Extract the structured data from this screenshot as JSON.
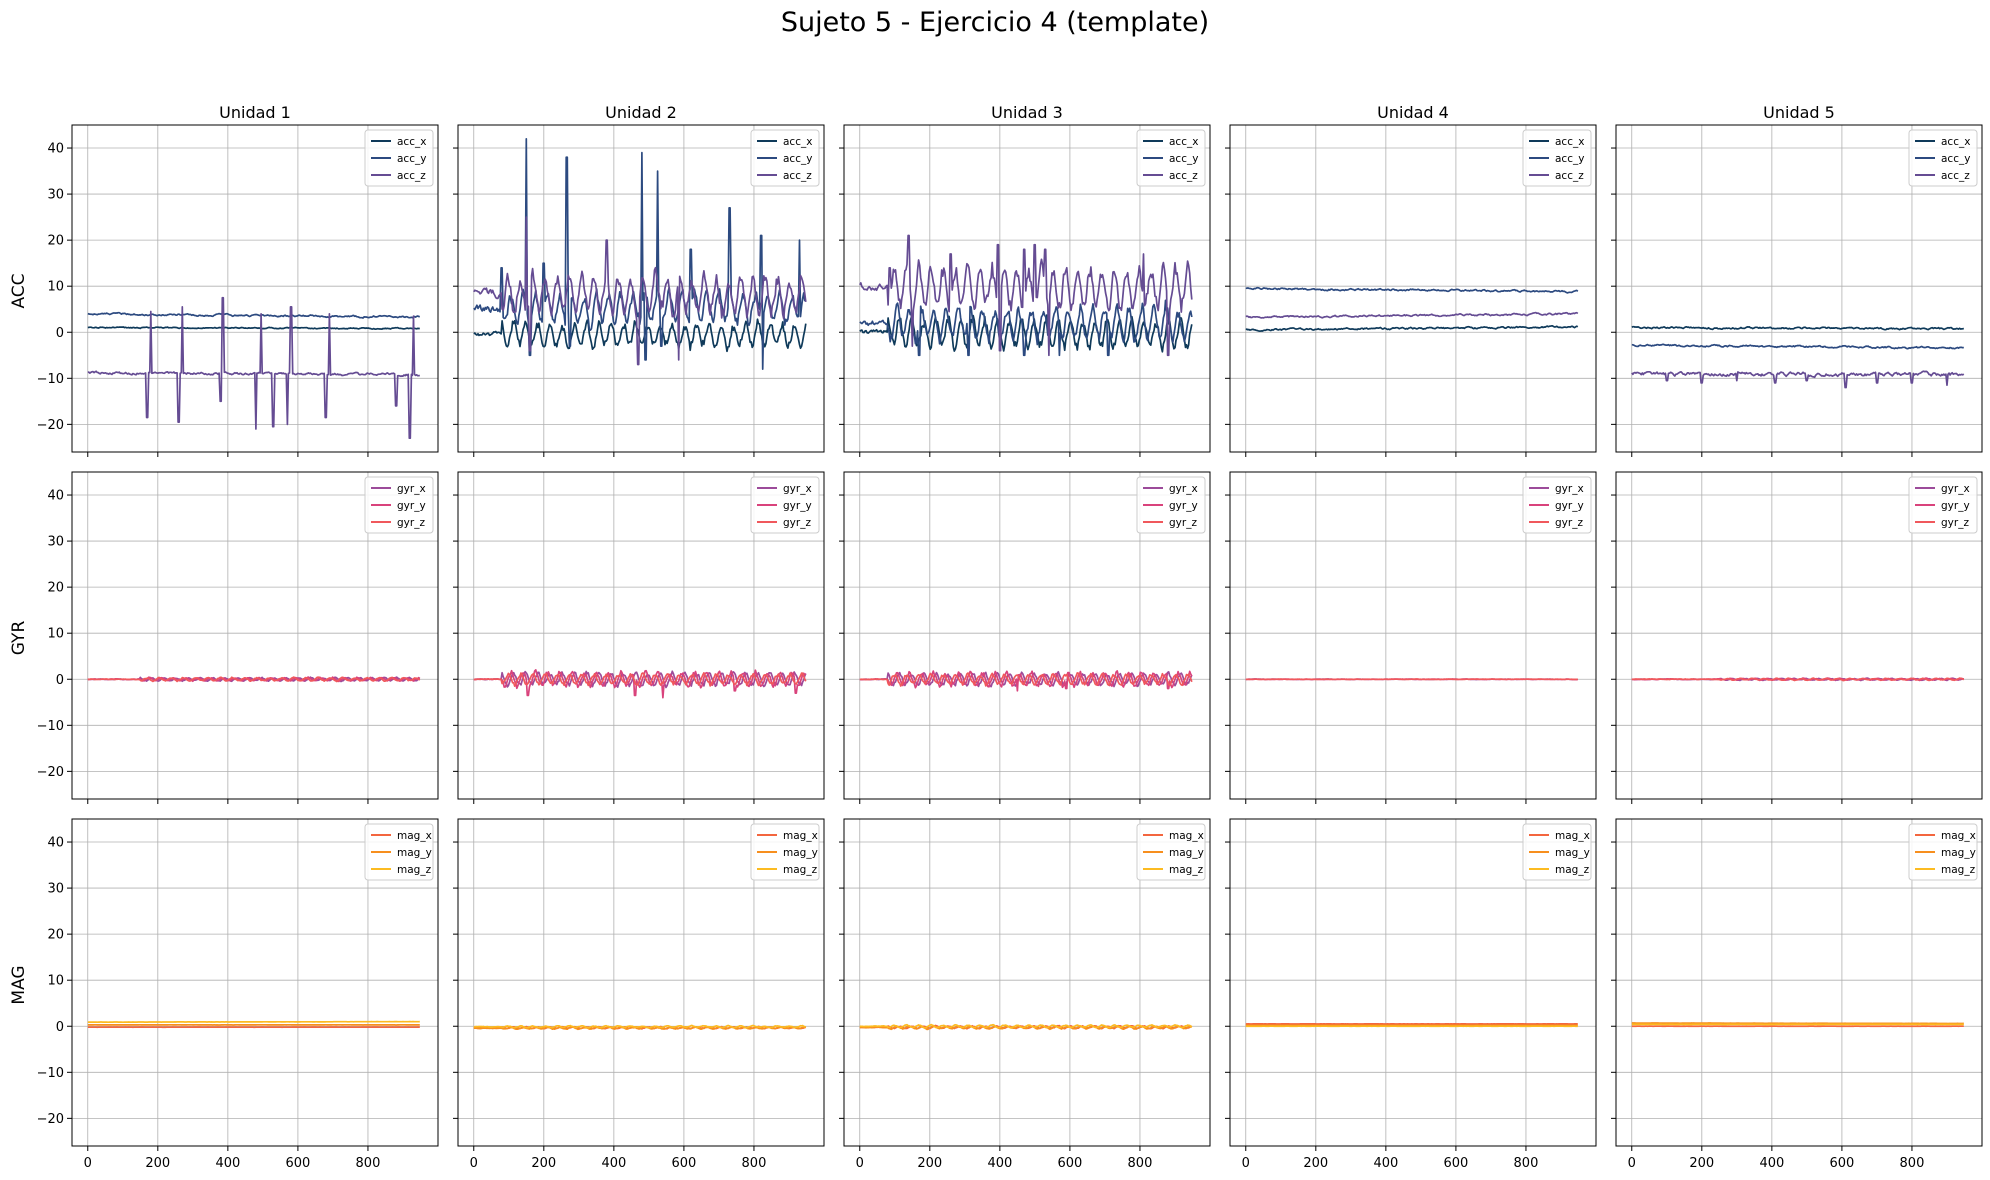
{
  "figure": {
    "title": "Sujeto 5 - Ejercicio 4 (template)",
    "column_titles": [
      "Unidad 1",
      "Unidad 2",
      "Unidad 3",
      "Unidad 4",
      "Unidad 5"
    ],
    "row_labels": [
      "ACC",
      "GYR",
      "MAG"
    ]
  },
  "chart_data": {
    "type": "line",
    "title": "Sujeto 5 - Ejercicio 4 (template)",
    "layout": "grid 3 rows x 5 columns, shared axes",
    "xlim": [
      -45,
      1000
    ],
    "ylim": [
      -26,
      45
    ],
    "xticks": [
      0,
      200,
      400,
      600,
      800
    ],
    "yticks": [
      -20,
      -10,
      0,
      10,
      20,
      30,
      40
    ],
    "grid": true,
    "legend_position": "top-right",
    "rows": [
      {
        "label": "ACC",
        "series_names": [
          "acc_x",
          "acc_y",
          "acc_z"
        ],
        "colors": [
          "#0f3a5a",
          "#2c4a80",
          "#654c93"
        ],
        "panels": [
          {
            "unit": "Unidad 1",
            "baselines": [
              1.0,
              4.0,
              -8.8
            ],
            "end_values": [
              0.8,
              3.3,
              -9.2
            ],
            "noise": [
              0.2,
              0.3,
              0.4
            ],
            "spikes": {
              "acc_z": [
                [
                  170,
                  -18.5
                ],
                [
                  180,
                  4.5
                ],
                [
                  260,
                  -19.5
                ],
                [
                  270,
                  5.5
                ],
                [
                  380,
                  -15
                ],
                [
                  385,
                  7.5
                ],
                [
                  480,
                  -21
                ],
                [
                  495,
                  4
                ],
                [
                  530,
                  -20.5
                ],
                [
                  570,
                  -20
                ],
                [
                  580,
                  5.5
                ],
                [
                  680,
                  -18.5
                ],
                [
                  690,
                  4
                ],
                [
                  880,
                  -16
                ],
                [
                  920,
                  -23
                ],
                [
                  930,
                  3.5
                ]
              ]
            }
          },
          {
            "unit": "Unidad 2",
            "baselines": [
              -0.5,
              5.0,
              8.5
            ],
            "end_values": [
              -0.8,
              5.5,
              8.0
            ],
            "noise": [
              0.8,
              1.2,
              1.3
            ],
            "burst": [
              80,
              950
            ],
            "burst_amp": [
              3.0,
              3.5,
              4.5
            ],
            "spikes": {
              "acc_y": [
                [
                  80,
                  14
                ],
                [
                  150,
                  42
                ],
                [
                  160,
                  -5
                ],
                [
                  200,
                  15
                ],
                [
                  265,
                  38
                ],
                [
                  275,
                  -3
                ],
                [
                  480,
                  39
                ],
                [
                  490,
                  -6
                ],
                [
                  525,
                  35
                ],
                [
                  535,
                  -3
                ],
                [
                  620,
                  18
                ],
                [
                  730,
                  27
                ],
                [
                  820,
                  21
                ],
                [
                  825,
                  -8
                ],
                [
                  930,
                  20
                ]
              ],
              "acc_z": [
                [
                  150,
                  25
                ],
                [
                  160,
                  -4
                ],
                [
                  380,
                  20
                ],
                [
                  470,
                  -7
                ],
                [
                  585,
                  -6
                ]
              ]
            }
          },
          {
            "unit": "Unidad 3",
            "baselines": [
              0.0,
              2.0,
              10.0
            ],
            "end_values": [
              -0.5,
              2.0,
              9.5
            ],
            "noise": [
              0.8,
              1.0,
              1.2
            ],
            "burst": [
              80,
              950
            ],
            "burst_amp": [
              3.5,
              4.0,
              5.0
            ],
            "spikes": {
              "acc_z": [
                [
                  85,
                  14
                ],
                [
                  140,
                  21
                ],
                [
                  150,
                  -3
                ],
                [
                  260,
                  17
                ],
                [
                  395,
                  19
                ],
                [
                  400,
                  -4
                ],
                [
                  470,
                  18
                ],
                [
                  500,
                  19
                ],
                [
                  530,
                  18
                ],
                [
                  540,
                  -5
                ],
                [
                  810,
                  17
                ],
                [
                  880,
                  -5
                ]
              ],
              "acc_y": [
                [
                  170,
                  -5
                ],
                [
                  310,
                  -5
                ],
                [
                  470,
                  -5
                ],
                [
                  570,
                  -5
                ],
                [
                  710,
                  -5
                ]
              ]
            }
          },
          {
            "unit": "Unidad 4",
            "baselines": [
              0.5,
              9.5,
              3.3
            ],
            "end_values": [
              1.2,
              8.8,
              4.0
            ],
            "noise": [
              0.3,
              0.3,
              0.3
            ],
            "spikes": {}
          },
          {
            "unit": "Unidad 5",
            "baselines": [
              1.0,
              -2.8,
              -9.0
            ],
            "end_values": [
              0.8,
              -3.4,
              -9.2
            ],
            "noise": [
              0.3,
              0.3,
              0.6
            ],
            "spikes": {
              "acc_z": [
                [
                  100,
                  -10.5
                ],
                [
                  200,
                  -11
                ],
                [
                  300,
                  -10.5
                ],
                [
                  410,
                  -11
                ],
                [
                  500,
                  -10.5
                ],
                [
                  610,
                  -12
                ],
                [
                  700,
                  -11
                ],
                [
                  800,
                  -11
                ],
                [
                  900,
                  -11.5
                ]
              ]
            }
          }
        ]
      },
      {
        "label": "GYR",
        "series_names": [
          "gyr_x",
          "gyr_y",
          "gyr_z"
        ],
        "colors": [
          "#9c4b9a",
          "#d9437c",
          "#f0585c"
        ],
        "panels": [
          {
            "unit": "Unidad 1",
            "baselines": [
              0,
              0,
              0
            ],
            "end_values": [
              0,
              0,
              0
            ],
            "noise": [
              0.1,
              0.1,
              0.1
            ],
            "burst": [
              150,
              950
            ],
            "burst_amp": [
              0.4,
              0.4,
              0.4
            ],
            "spikes": {}
          },
          {
            "unit": "Unidad 2",
            "baselines": [
              0,
              0,
              0
            ],
            "end_values": [
              0,
              0,
              0
            ],
            "noise": [
              0.1,
              0.1,
              0.1
            ],
            "burst": [
              80,
              950
            ],
            "burst_amp": [
              1.6,
              1.8,
              1.3
            ],
            "spikes": {
              "gyr_y": [
                [
                  155,
                  -3.5
                ],
                [
                  460,
                  -3.5
                ],
                [
                  540,
                  -4
                ],
                [
                  745,
                  -2.5
                ],
                [
                  920,
                  -3
                ]
              ]
            }
          },
          {
            "unit": "Unidad 3",
            "baselines": [
              0,
              0,
              0
            ],
            "end_values": [
              0,
              0,
              0
            ],
            "noise": [
              0.1,
              0.1,
              0.1
            ],
            "burst": [
              80,
              950
            ],
            "burst_amp": [
              1.5,
              1.7,
              1.3
            ],
            "spikes": {
              "gyr_y": [
                [
                  450,
                  -2.5
                ],
                [
                  590,
                  -2
                ],
                [
                  880,
                  -2
                ]
              ]
            }
          },
          {
            "unit": "Unidad 4",
            "baselines": [
              0,
              0,
              0
            ],
            "end_values": [
              0,
              0,
              0
            ],
            "noise": [
              0.05,
              0.05,
              0.05
            ],
            "spikes": {}
          },
          {
            "unit": "Unidad 5",
            "baselines": [
              0,
              0,
              0
            ],
            "end_values": [
              0,
              0,
              0
            ],
            "noise": [
              0.08,
              0.08,
              0.08
            ],
            "burst": [
              250,
              950
            ],
            "burst_amp": [
              0.2,
              0.2,
              0.2
            ],
            "spikes": {}
          }
        ]
      },
      {
        "label": "MAG",
        "series_names": [
          "mag_x",
          "mag_y",
          "mag_z"
        ],
        "colors": [
          "#f3663f",
          "#f78f1e",
          "#fcbb21"
        ],
        "panels": [
          {
            "unit": "Unidad 1",
            "baselines": [
              -0.2,
              0.3,
              0.9
            ],
            "end_values": [
              -0.2,
              0.3,
              1.0
            ],
            "noise": [
              0.02,
              0.02,
              0.02
            ],
            "spikes": {}
          },
          {
            "unit": "Unidad 2",
            "baselines": [
              -0.3,
              -0.4,
              -0.1
            ],
            "end_values": [
              -0.3,
              -0.4,
              -0.1
            ],
            "noise": [
              0.1,
              0.1,
              0.1
            ],
            "burst": [
              80,
              950
            ],
            "burst_amp": [
              0.2,
              0.2,
              0.2
            ],
            "spikes": {}
          },
          {
            "unit": "Unidad 3",
            "baselines": [
              -0.2,
              -0.3,
              0.0
            ],
            "end_values": [
              -0.2,
              -0.3,
              0.0
            ],
            "noise": [
              0.1,
              0.1,
              0.1
            ],
            "burst": [
              80,
              950
            ],
            "burst_amp": [
              0.3,
              0.3,
              0.3
            ],
            "spikes": {}
          },
          {
            "unit": "Unidad 4",
            "baselines": [
              0.5,
              0.2,
              0.0
            ],
            "end_values": [
              0.5,
              0.2,
              0.0
            ],
            "noise": [
              0.02,
              0.02,
              0.02
            ],
            "spikes": {}
          },
          {
            "unit": "Unidad 5",
            "baselines": [
              0.0,
              0.7,
              0.4
            ],
            "end_values": [
              0.0,
              0.6,
              0.4
            ],
            "noise": [
              0.02,
              0.02,
              0.02
            ],
            "spikes": {}
          }
        ]
      }
    ]
  }
}
